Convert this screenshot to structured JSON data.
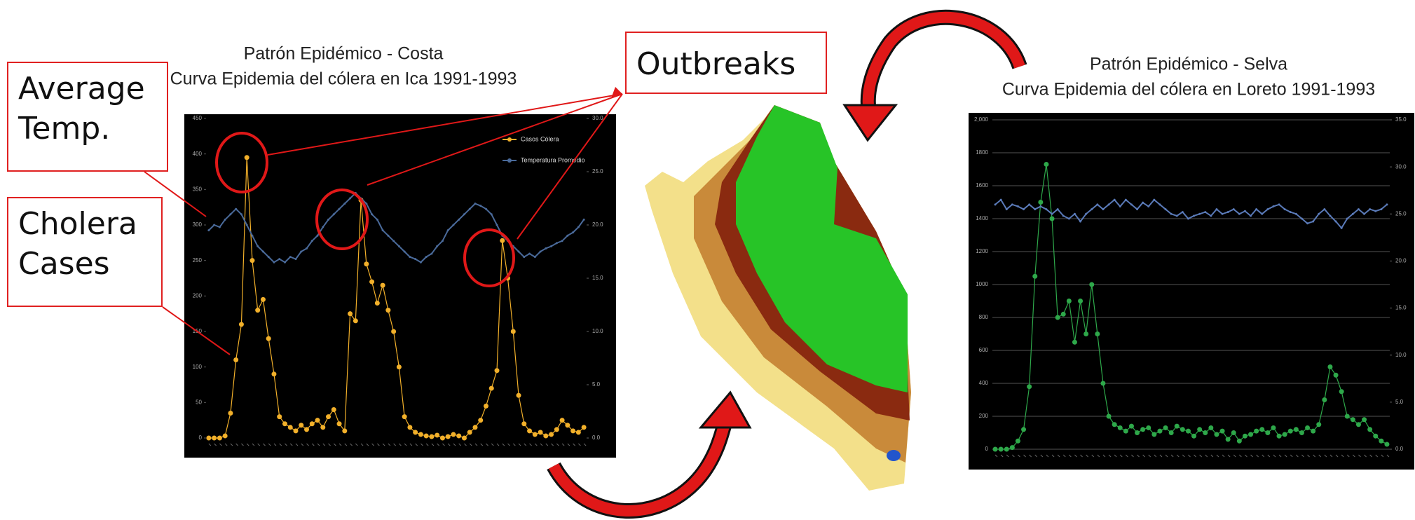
{
  "annotations": [
    "Average Temp.",
    "Cholera Cases",
    "Outbreaks"
  ],
  "chart_data": [
    {
      "type": "line",
      "title": "Patrón Epidémico - Costa",
      "subtitle": "Curva Epidemia del cólera en Ica 1991-1993",
      "categories": [
        null,
        null,
        null,
        null,
        null,
        null,
        null,
        null,
        null,
        null,
        null,
        null,
        null,
        null,
        null,
        null,
        null,
        null,
        null,
        null,
        null,
        null,
        null,
        null,
        null,
        null,
        null,
        null,
        null,
        null,
        null,
        null,
        null,
        null,
        null,
        null,
        null,
        null,
        null,
        null,
        null,
        null,
        null,
        null,
        null,
        null,
        null,
        null,
        null,
        null,
        null,
        null,
        null,
        null,
        null,
        null,
        null,
        null,
        null,
        null,
        null,
        null,
        null,
        null,
        null,
        null,
        null,
        null,
        null,
        null
      ],
      "series": [
        {
          "name": "Casos Cólera",
          "color": "#f2b02a",
          "values": [
            0,
            0,
            0,
            3,
            35,
            110,
            160,
            395,
            250,
            180,
            195,
            140,
            90,
            30,
            20,
            15,
            10,
            18,
            12,
            20,
            25,
            15,
            30,
            40,
            20,
            10,
            175,
            165,
            335,
            245,
            220,
            190,
            215,
            180,
            150,
            100,
            30,
            15,
            8,
            5,
            3,
            2,
            4,
            0,
            2,
            5,
            3,
            0,
            8,
            15,
            25,
            45,
            70,
            95,
            278,
            225,
            150,
            60,
            20,
            10,
            5,
            8,
            3,
            5,
            12,
            25,
            18,
            10,
            8,
            15
          ]
        },
        {
          "name": "Temperatura Promedio",
          "color": "#4a6a9a",
          "axis": "y2",
          "values": [
            19.5,
            20,
            19.8,
            20.5,
            21,
            21.5,
            21,
            20,
            19,
            18,
            17.5,
            17,
            16.5,
            16.8,
            16.5,
            17,
            16.8,
            17.5,
            17.8,
            18.5,
            19,
            19.8,
            20.5,
            21,
            21.5,
            22,
            22.5,
            23,
            22.5,
            22,
            21,
            20.5,
            19.5,
            19,
            18.5,
            18,
            17.5,
            17,
            16.8,
            16.5,
            17,
            17.3,
            18,
            18.5,
            19.5,
            20,
            20.5,
            21,
            21.5,
            22,
            21.8,
            21.5,
            21,
            20,
            19,
            18.5,
            18,
            17.5,
            17,
            17.3,
            17,
            17.5,
            17.8,
            18,
            18.3,
            18.5,
            19,
            19.3,
            19.8,
            20.5
          ]
        }
      ],
      "ylim": [
        0,
        450
      ],
      "yticks": [
        0,
        50,
        100,
        150,
        200,
        250,
        300,
        350,
        400,
        450
      ],
      "y2lim": [
        0,
        30
      ],
      "y2ticks": [
        {
          "value": 0,
          "label": "0.0"
        },
        {
          "value": 5,
          "label": "5.0"
        },
        {
          "value": 10,
          "label": "10.0"
        },
        {
          "value": 15,
          "label": "15.0"
        },
        {
          "value": 20,
          "label": "20.0"
        },
        {
          "value": 25,
          "label": "25.0"
        },
        {
          "value": 30,
          "label": "30.0"
        }
      ],
      "grid": false,
      "legend": "upper right"
    },
    {
      "type": "line",
      "title": "Patrón Epidémico - Selva",
      "subtitle": "Curva Epidemia del cólera en Loreto 1991-1993",
      "categories": [
        null,
        null,
        null,
        null,
        null,
        null,
        null,
        null,
        null,
        null,
        null,
        null,
        null,
        null,
        null,
        null,
        null,
        null,
        null,
        null,
        null,
        null,
        null,
        null,
        null,
        null,
        null,
        null,
        null,
        null,
        null,
        null,
        null,
        null,
        null,
        null,
        null,
        null,
        null,
        null,
        null,
        null,
        null,
        null,
        null,
        null,
        null,
        null,
        null,
        null,
        null,
        null,
        null,
        null,
        null,
        null,
        null,
        null,
        null,
        null,
        null,
        null,
        null,
        null,
        null,
        null,
        null,
        null,
        null,
        null
      ],
      "series": [
        {
          "color": "#2ea84a",
          "values": [
            0,
            0,
            0,
            10,
            50,
            120,
            380,
            1050,
            1500,
            1730,
            1400,
            800,
            820,
            900,
            650,
            900,
            700,
            1000,
            700,
            400,
            200,
            150,
            130,
            110,
            140,
            100,
            120,
            130,
            90,
            110,
            130,
            100,
            140,
            120,
            110,
            80,
            120,
            100,
            130,
            90,
            110,
            60,
            100,
            50,
            80,
            90,
            110,
            120,
            100,
            130,
            80,
            90,
            110,
            120,
            100,
            130,
            110,
            150,
            300,
            500,
            450,
            350,
            200,
            180,
            150,
            180,
            120,
            80,
            50,
            30
          ]
        },
        {
          "color": "#5a7ab8",
          "axis": "y2",
          "values": [
            26,
            26.5,
            25.5,
            26,
            25.8,
            25.5,
            26,
            25.5,
            25.8,
            25.5,
            25,
            25.5,
            24.8,
            24.5,
            25,
            24.2,
            25,
            25.5,
            26,
            25.5,
            26,
            26.5,
            25.8,
            26.5,
            26,
            25.5,
            26.2,
            25.8,
            26.5,
            26,
            25.5,
            25,
            24.8,
            25.2,
            24.5,
            24.8,
            25,
            25.2,
            24.8,
            25.5,
            25,
            25.2,
            25.5,
            25,
            25.3,
            24.8,
            25.5,
            25,
            25.5,
            25.8,
            26,
            25.5,
            25.2,
            25,
            24.5,
            24,
            24.2,
            25,
            25.5,
            24.8,
            24.2,
            23.5,
            24.5,
            25,
            25.5,
            25,
            25.5,
            25.3,
            25.5,
            26
          ]
        }
      ],
      "ylim": [
        0,
        2000
      ],
      "yticks": [
        0,
        200,
        400,
        600,
        800,
        1000,
        1200,
        1400,
        1600,
        1800,
        {
          "value": 2000,
          "label": "2,000"
        }
      ],
      "y2lim": [
        0,
        35
      ],
      "y2ticks": [
        {
          "value": 0,
          "label": "0.0"
        },
        {
          "value": 5,
          "label": "5.0"
        },
        {
          "value": 10,
          "label": "10.0"
        },
        {
          "value": 15,
          "label": "15.0"
        },
        {
          "value": 20,
          "label": "20.0"
        },
        {
          "value": 25,
          "label": "25.0"
        },
        {
          "value": 30,
          "label": "30.0"
        },
        {
          "value": 35,
          "label": "35.0"
        }
      ],
      "grid": true
    }
  ]
}
